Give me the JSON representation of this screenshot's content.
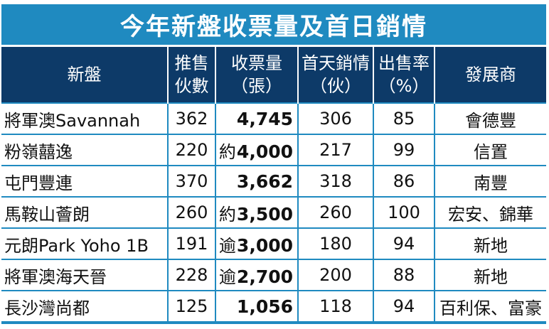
{
  "title": "今年新盤收票量及首日銷情",
  "headers": [
    {
      "line1": "新盤",
      "line2": ""
    },
    {
      "line1": "推售",
      "line2": "伙數"
    },
    {
      "line1": "收票量",
      "line2": "（張）"
    },
    {
      "line1": "首天銷情",
      "line2": "（伙）"
    },
    {
      "line1": "出售率",
      "line2": "（%）"
    },
    {
      "line1": "發展商",
      "line2": ""
    }
  ],
  "rows": [
    {
      "name": "將軍澳Savannah",
      "units": "362",
      "prefix": "",
      "tickets": "4,745",
      "sold": "306",
      "rate": "85",
      "developer": "會德豐"
    },
    {
      "name": "粉嶺囍逸",
      "units": "220",
      "prefix": "約",
      "tickets": "4,000",
      "sold": "217",
      "rate": "99",
      "developer": "信置"
    },
    {
      "name": "屯門豐連",
      "units": "370",
      "prefix": "",
      "tickets": "3,662",
      "sold": "318",
      "rate": "86",
      "developer": "南豐"
    },
    {
      "name": "馬鞍山薈朗",
      "units": "260",
      "prefix": "約",
      "tickets": "3,500",
      "sold": "260",
      "rate": "100",
      "developer": "宏安、錦華"
    },
    {
      "name": "元朗Park Yoho 1B",
      "units": "191",
      "prefix": "逾",
      "tickets": "3,000",
      "sold": "180",
      "rate": "94",
      "developer": "新地"
    },
    {
      "name": "將軍澳海天晉",
      "units": "228",
      "prefix": "逾",
      "tickets": "2,700",
      "sold": "200",
      "rate": "88",
      "developer": "新地"
    },
    {
      "name": "長沙灣尚都",
      "units": "125",
      "prefix": "",
      "tickets": "1,056",
      "sold": "118",
      "rate": "94",
      "developer": "百利保、富豪"
    }
  ]
}
